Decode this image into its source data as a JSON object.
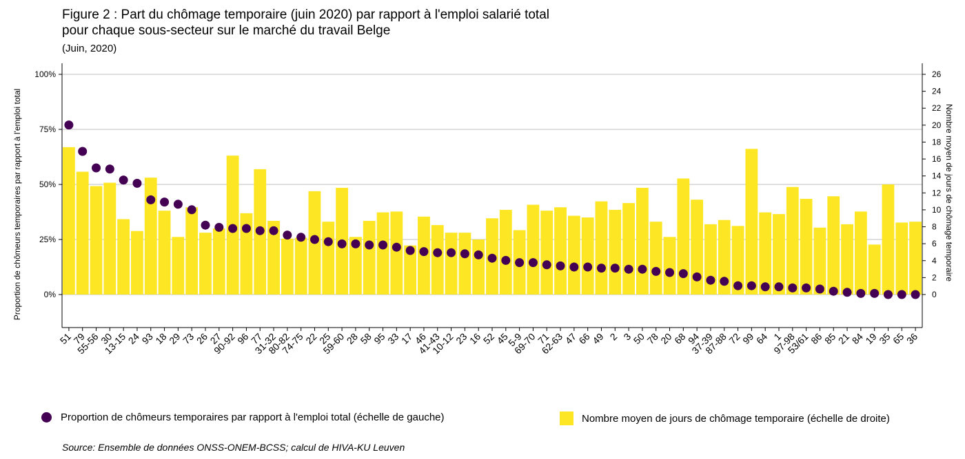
{
  "title_line1": "Figure 2 : Part du chômage temporaire (juin 2020) par rapport à l'emploi salarié total",
  "title_line2": "pour chaque sous-secteur sur le marché du travail Belge",
  "subtitle": "(Juin, 2020)",
  "source": "Source: Ensemble de données ONSS-ONEM-BCSS; calcul de HIVA-KU Leuven",
  "colors": {
    "dot": "#440154",
    "bar": "#fde725",
    "grid": "#bfbfbf"
  },
  "legend": {
    "dot_label": "Proportion de chômeurs temporaires par rapport à l'emploi total (échelle de gauche)",
    "bar_label": "Nombre moyen de jours de chômage temporaire (échelle de droite)"
  },
  "chart_data": {
    "type": "bar+scatter",
    "ylabel_left": "Proportion de chômeurs temporaires par rapport à l'emploi total",
    "ylabel_right": "Nombre moyen de jours de chômage temporaire",
    "ylim_left": [
      -15,
      105
    ],
    "ylim_right": [
      -3.9,
      27.3
    ],
    "left_ticks": [
      {
        "v": 0,
        "label": "0%"
      },
      {
        "v": 25,
        "label": "25%"
      },
      {
        "v": 50,
        "label": "50%"
      },
      {
        "v": 75,
        "label": "75%"
      },
      {
        "v": 100,
        "label": "100%"
      }
    ],
    "right_ticks": [
      0,
      2,
      4,
      6,
      8,
      10,
      12,
      14,
      16,
      18,
      20,
      22,
      24,
      26
    ],
    "categories": [
      "51",
      "79",
      "55-56",
      "30",
      "13-15",
      "24",
      "93",
      "18",
      "29",
      "73",
      "26",
      "27",
      "90-92",
      "96",
      "77",
      "31-32",
      "80-82",
      "74-75",
      "22",
      "25",
      "59-60",
      "28",
      "58",
      "95",
      "33",
      "17",
      "46",
      "41-43",
      "10-12",
      "23",
      "16",
      "52",
      "45",
      "5-9",
      "69-70",
      "71",
      "62-63",
      "47",
      "66",
      "49",
      "2",
      "3",
      "50",
      "78",
      "20",
      "68",
      "94",
      "37-39",
      "87-88",
      "72",
      "99",
      "64",
      "1",
      "97-98",
      "53/61",
      "86",
      "85",
      "21",
      "84",
      "19",
      "35",
      "65",
      "36"
    ],
    "series": [
      {
        "name": "Proportion de chômeurs temporaires par rapport à l'emploi total (échelle de gauche)",
        "axis": "left",
        "kind": "points",
        "values": [
          77,
          65,
          57.5,
          57,
          52,
          50.5,
          43,
          42,
          41,
          38.5,
          31.5,
          30.5,
          30,
          30,
          29,
          29,
          27,
          26,
          25,
          24,
          23,
          23,
          22.5,
          22.5,
          21.5,
          20,
          19.5,
          19,
          19,
          18.5,
          18,
          16.5,
          15.5,
          14.5,
          14.5,
          13.5,
          13,
          12.5,
          12.5,
          12,
          12,
          11.5,
          11.5,
          10.5,
          10,
          9.5,
          8,
          6.5,
          6,
          4,
          4,
          3.5,
          3.5,
          3,
          3,
          2.5,
          1.5,
          1,
          0.5,
          0.5,
          0,
          0,
          0
        ]
      },
      {
        "name": "Nombre moyen de jours de chômage temporaire (échelle de droite)",
        "axis": "right",
        "kind": "bars",
        "values": [
          17.4,
          14.5,
          12.8,
          13.2,
          8.9,
          7.5,
          13.8,
          9.9,
          6.8,
          10.3,
          7.3,
          7.8,
          16.4,
          9.6,
          14.8,
          8.7,
          6.6,
          6.7,
          12.2,
          8.6,
          12.6,
          6.8,
          8.7,
          9.7,
          9.8,
          5.8,
          9.2,
          8.2,
          7.3,
          7.3,
          6.5,
          9.0,
          10.0,
          7.6,
          10.6,
          9.9,
          10.3,
          9.3,
          9.1,
          11.0,
          10.0,
          10.8,
          12.6,
          8.6,
          6.8,
          13.7,
          11.2,
          8.3,
          8.8,
          8.1,
          17.2,
          9.7,
          9.5,
          12.7,
          11.3,
          7.9,
          11.6,
          8.3,
          9.8,
          5.9,
          13.0,
          8.5,
          8.6
        ]
      }
    ]
  }
}
